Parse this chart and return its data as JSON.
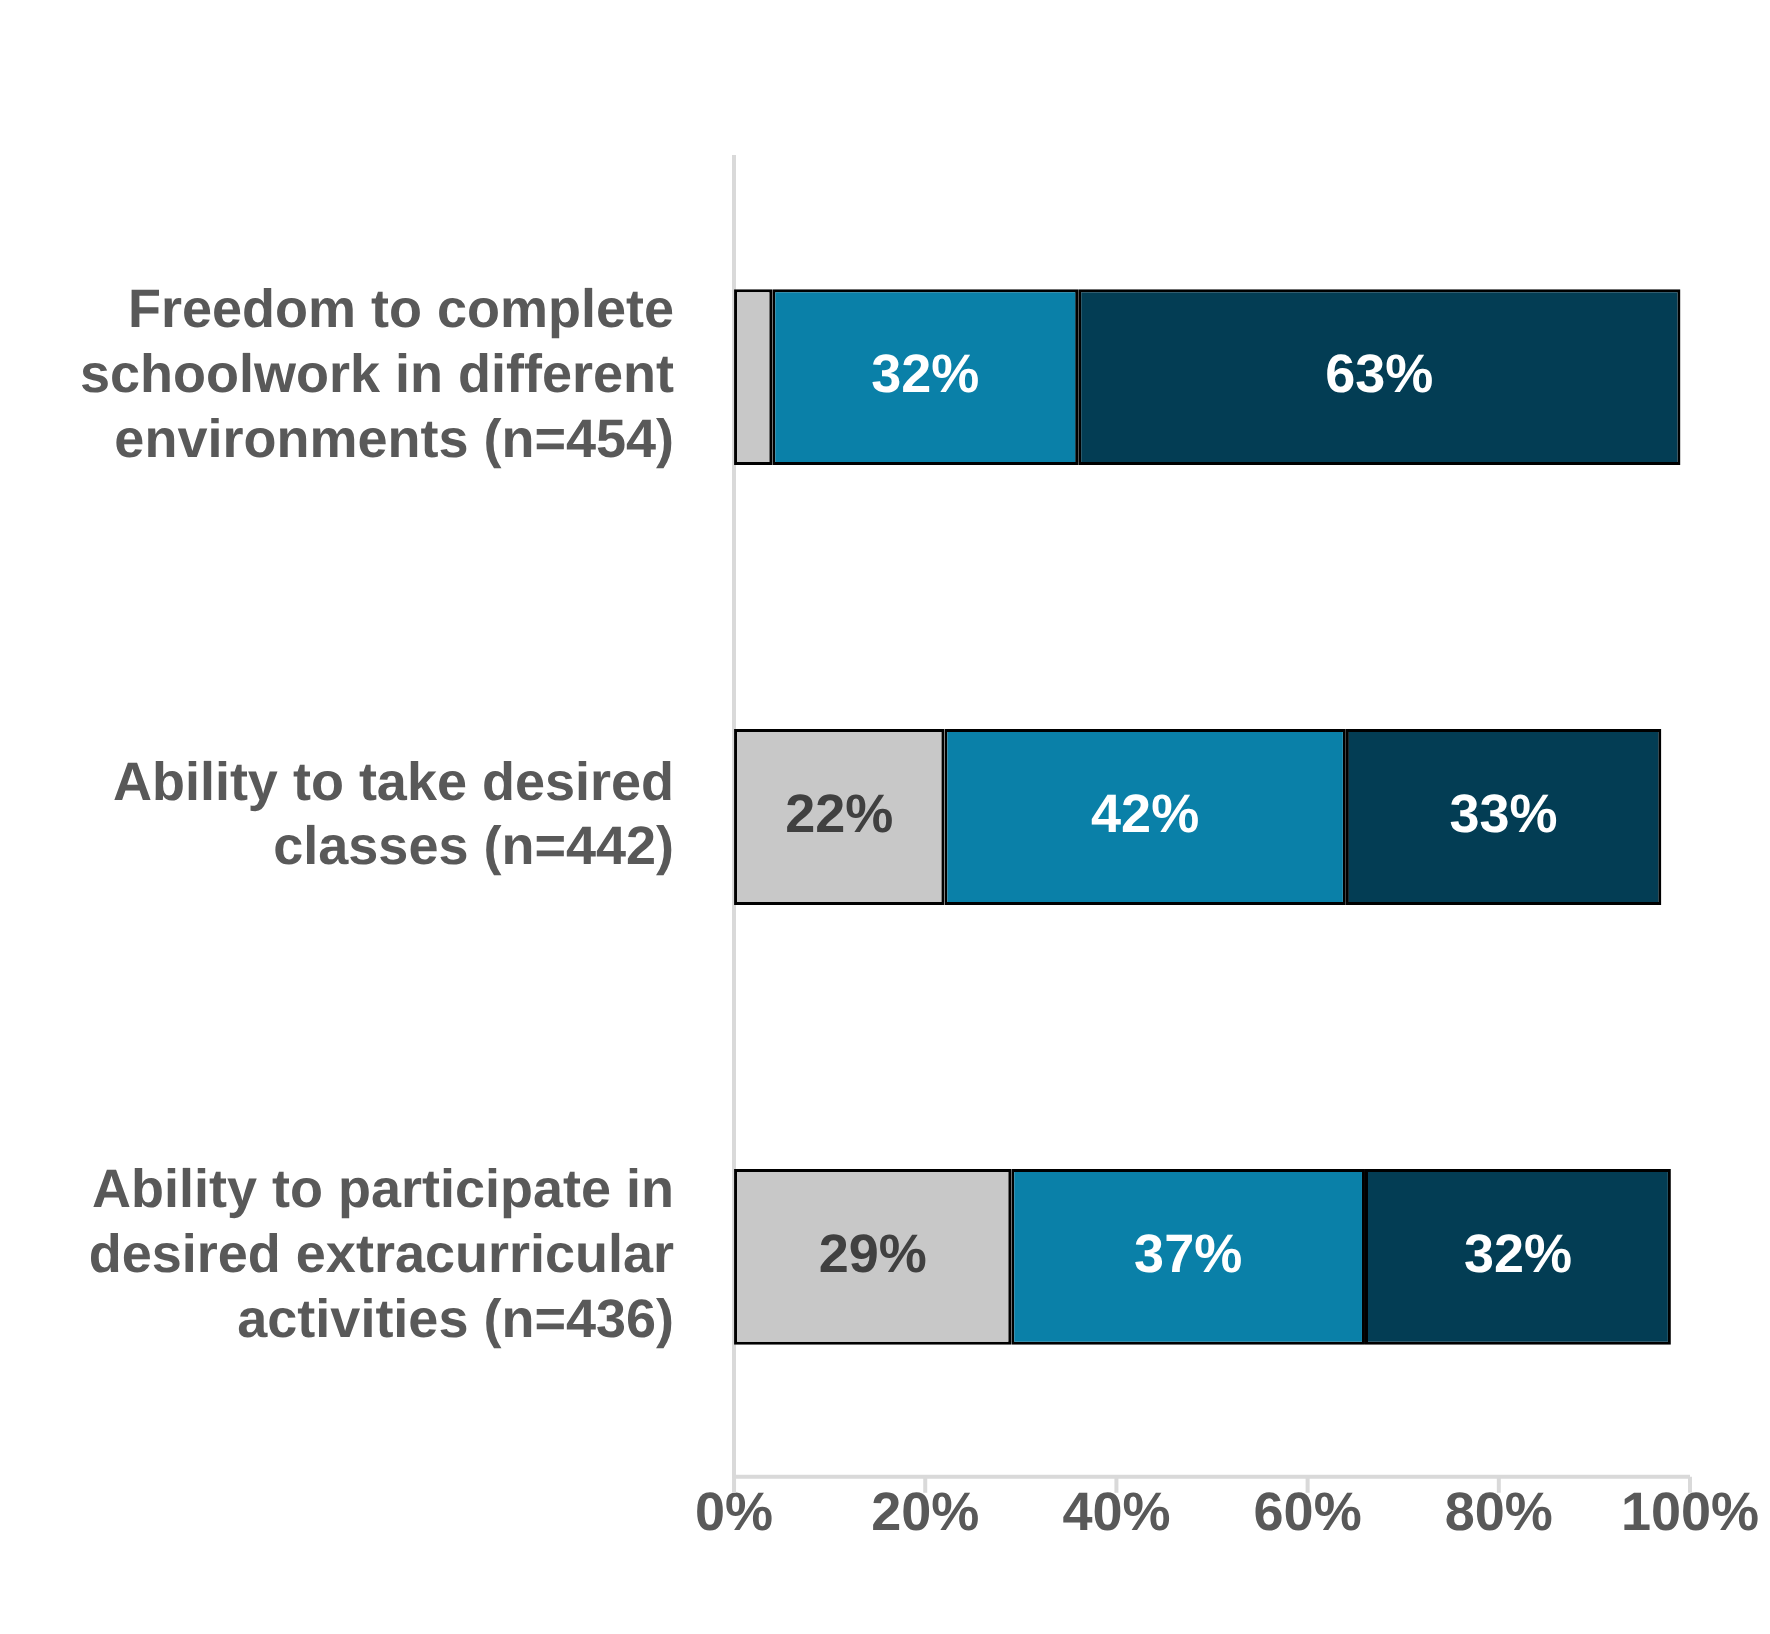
{
  "chart_data": {
    "type": "bar",
    "orientation": "horizontal",
    "stacked": true,
    "categories": [
      "Freedom to complete schoolwork in different environments (n=454)",
      "Ability to take desired classes (n=442)",
      "Ability to participate in desired extracurricular activities (n=436)"
    ],
    "series": [
      {
        "color": "#c8c8c8",
        "values": [
          4,
          22,
          29
        ],
        "value_labels": [
          null,
          "22%",
          "29%"
        ]
      },
      {
        "color": "#0a80a8",
        "values": [
          32,
          42,
          37
        ],
        "value_labels": [
          "32%",
          "42%",
          "37%"
        ]
      },
      {
        "color": "#033d54",
        "values": [
          63,
          33,
          32
        ],
        "value_labels": [
          "63%",
          "33%",
          "32%"
        ]
      }
    ],
    "xlim": [
      0,
      100
    ],
    "xticks": [
      {
        "value": 0,
        "label": "0%"
      },
      {
        "value": 20,
        "label": "20%"
      },
      {
        "value": 40,
        "label": "40%"
      },
      {
        "value": 60,
        "label": "60%"
      },
      {
        "value": 80,
        "label": "80%"
      },
      {
        "value": 100,
        "label": "100%"
      }
    ],
    "grid": false,
    "legend": false
  }
}
